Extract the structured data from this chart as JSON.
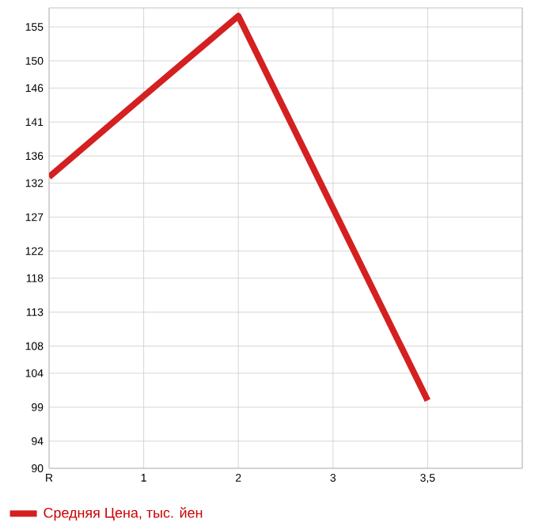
{
  "chart_data": {
    "type": "line",
    "categories": [
      "R",
      "1",
      "2",
      "3",
      "3,5",
      null
    ],
    "series": [
      {
        "name": "Средняя Цена, тыс. йен",
        "color": "#d42020",
        "values": [
          132.9,
          144.8,
          156.6,
          128.3,
          100.0,
          null
        ]
      }
    ],
    "ylim": [
      90,
      157.8
    ],
    "yticks": [
      90,
      94,
      99,
      104,
      108,
      113,
      118,
      122,
      127,
      132,
      136,
      141,
      146,
      150,
      155
    ],
    "grid": true,
    "legend": "bottom left",
    "marker": "none",
    "line_style": "solid"
  }
}
